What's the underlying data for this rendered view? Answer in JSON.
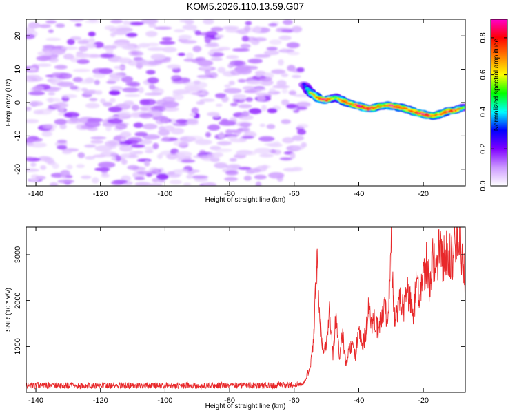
{
  "title": "KOM5.2026.110.13.59.G07",
  "chart_data": [
    {
      "type": "heatmap",
      "xlabel": "Height of straight line (km)",
      "ylabel": "Frequency (Hz)",
      "xlim": [
        -143,
        -7
      ],
      "ylim": [
        -25,
        25
      ],
      "xticks": [
        -140,
        -120,
        -100,
        -80,
        -60,
        -40,
        -20
      ],
      "yticks": [
        -20,
        -10,
        0,
        10,
        20
      ],
      "noise_region_x": [
        -143,
        -57
      ],
      "ridge": {
        "x": [
          -57,
          -55,
          -52,
          -50,
          -47,
          -45,
          -42,
          -40,
          -37,
          -35,
          -32,
          -30,
          -27,
          -25,
          -22,
          -20,
          -17,
          -15,
          -12,
          -10,
          -7
        ],
        "freq": [
          5.5,
          3.0,
          1.0,
          0.8,
          1.5,
          0.5,
          -0.5,
          -1.0,
          -1.8,
          -1.5,
          -0.8,
          -1.0,
          -1.5,
          -2.0,
          -3.0,
          -3.5,
          -4.0,
          -3.5,
          -2.5,
          -2.2,
          -1.5
        ],
        "amplitude": [
          0.3,
          0.6,
          0.85,
          0.9,
          0.55,
          0.8,
          0.75,
          0.95,
          0.9,
          0.85,
          0.7,
          0.9,
          0.8,
          0.75,
          0.85,
          0.95,
          0.8,
          0.75,
          0.9,
          0.85,
          0.5
        ]
      },
      "colorbar": {
        "label": "Normalized spectral amplitude",
        "range": [
          0,
          0.9
        ],
        "ticks": [
          "0.0",
          "0.2",
          "0.4",
          "0.6",
          "0.8"
        ],
        "stops": [
          "#ffffff",
          "#cc99ff",
          "#7f00ff",
          "#0000ff",
          "#00ffff",
          "#00ff00",
          "#ffff00",
          "#ff8000",
          "#ff0000",
          "#ff00cc"
        ]
      }
    },
    {
      "type": "line",
      "xlabel": "Height of straight line (km)",
      "ylabel": "SNR (10 * v/v)",
      "xlim": [
        -143,
        -7
      ],
      "ylim": [
        0,
        3600
      ],
      "xticks": [
        -140,
        -120,
        -100,
        -80,
        -60,
        -40,
        -20
      ],
      "yticks": [
        1000,
        2000,
        3000
      ],
      "color": "#e8282a",
      "series": [
        {
          "name": "SNR",
          "x": [
            -143,
            -130,
            -120,
            -110,
            -100,
            -90,
            -80,
            -70,
            -60,
            -57,
            -55,
            -54,
            -53,
            -52,
            -51,
            -50,
            -49,
            -48,
            -47,
            -46,
            -45,
            -44,
            -43,
            -42,
            -41,
            -40,
            -39,
            -38,
            -37,
            -36,
            -35,
            -34,
            -33,
            -32,
            -31,
            -30,
            -29,
            -28,
            -27,
            -26,
            -25,
            -24,
            -23,
            -22,
            -21,
            -20,
            -19,
            -18,
            -17,
            -16,
            -15,
            -14,
            -13,
            -12,
            -11,
            -10,
            -9,
            -8,
            -7
          ],
          "y": [
            150,
            150,
            150,
            150,
            150,
            150,
            150,
            150,
            160,
            200,
            550,
            1200,
            2900,
            1500,
            900,
            1050,
            1800,
            800,
            1750,
            700,
            1300,
            600,
            900,
            1050,
            750,
            1500,
            1000,
            1250,
            1800,
            1400,
            1600,
            1350,
            1700,
            1900,
            1450,
            3300,
            1700,
            1800,
            2000,
            1850,
            2200,
            2000,
            1700,
            2500,
            2000,
            2600,
            2800,
            2300,
            3000,
            2500,
            3400,
            2800,
            3100,
            3000,
            2900,
            3200,
            3600,
            2900,
            2400
          ]
        }
      ]
    }
  ]
}
